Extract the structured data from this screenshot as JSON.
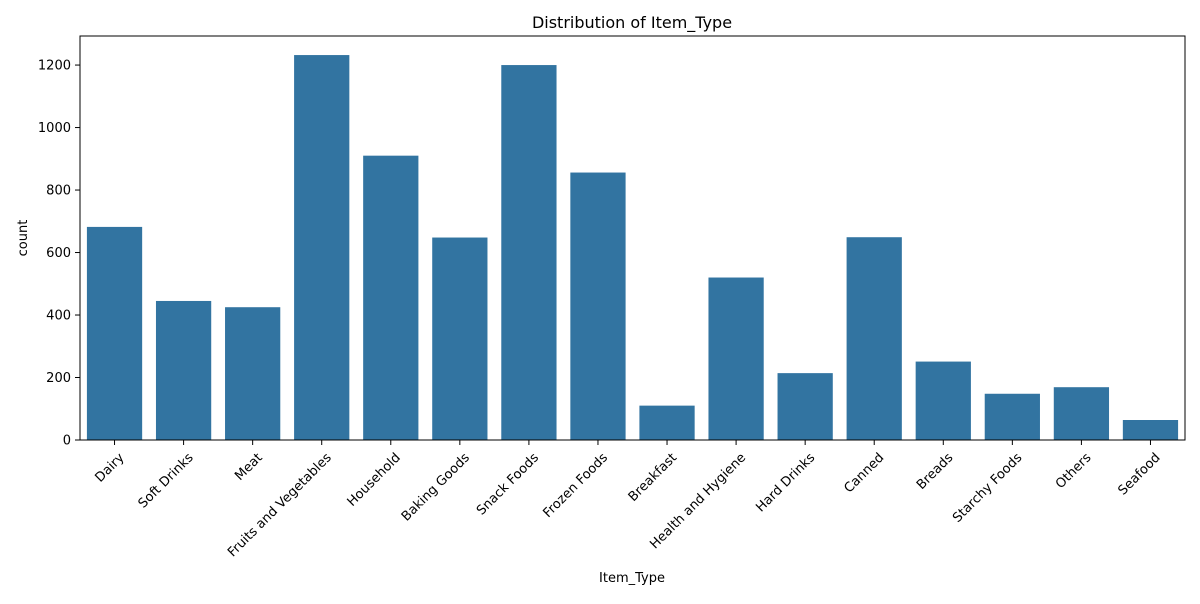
{
  "chart_data": {
    "type": "bar",
    "title": "Distribution of Item_Type",
    "xlabel": "Item_Type",
    "ylabel": "count",
    "categories": [
      "Dairy",
      "Soft Drinks",
      "Meat",
      "Fruits and Vegetables",
      "Household",
      "Baking Goods",
      "Snack Foods",
      "Frozen Foods",
      "Breakfast",
      "Health and Hygiene",
      "Hard Drinks",
      "Canned",
      "Breads",
      "Starchy Foods",
      "Others",
      "Seafood"
    ],
    "values": [
      682,
      445,
      425,
      1232,
      910,
      648,
      1200,
      856,
      110,
      520,
      214,
      649,
      251,
      148,
      169,
      64
    ],
    "ylim": [
      0,
      1293
    ],
    "yticks": [
      0,
      200,
      400,
      600,
      800,
      1000,
      1200
    ],
    "grid": false,
    "legend": "none",
    "bar_color": "#3274a1"
  }
}
